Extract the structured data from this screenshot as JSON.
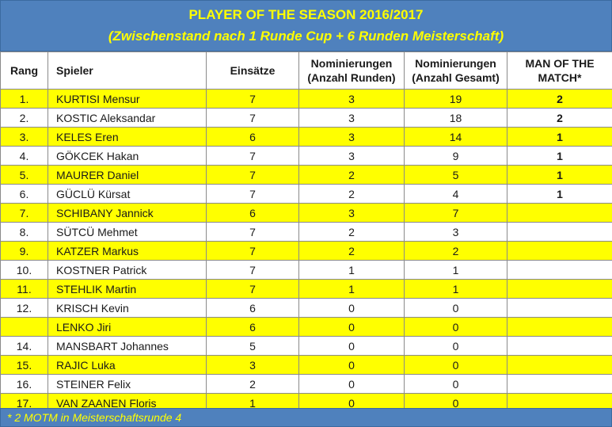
{
  "header": {
    "title": "PLAYER OF THE SEASON 2016/2017",
    "subtitle": "(Zwischenstand nach 1 Runde Cup + 6 Runden Meisterschaft)"
  },
  "columns": {
    "rang": "Rang",
    "spieler": "Spieler",
    "einsaetze": "Einsätze",
    "runden_line1": "Nominierungen",
    "runden_line2": "(Anzahl Runden)",
    "gesamt_line1": "Nominierungen",
    "gesamt_line2": "(Anzahl Gesamt)",
    "motm_line1": "MAN OF THE",
    "motm_line2": "MATCH*"
  },
  "rows": [
    {
      "rang": "1.",
      "spieler": "KURTISI Mensur",
      "einsaetze": "7",
      "runden": "3",
      "gesamt": "19",
      "motm": "2",
      "highlight": true
    },
    {
      "rang": "2.",
      "spieler": "KOSTIC Aleksandar",
      "einsaetze": "7",
      "runden": "3",
      "gesamt": "18",
      "motm": "2",
      "highlight": false
    },
    {
      "rang": "3.",
      "spieler": "KELES Eren",
      "einsaetze": "6",
      "runden": "3",
      "gesamt": "14",
      "motm": "1",
      "highlight": true
    },
    {
      "rang": "4.",
      "spieler": "GÖKCEK Hakan",
      "einsaetze": "7",
      "runden": "3",
      "gesamt": "9",
      "motm": "1",
      "highlight": false
    },
    {
      "rang": "5.",
      "spieler": "MAURER Daniel",
      "einsaetze": "7",
      "runden": "2",
      "gesamt": "5",
      "motm": "1",
      "highlight": true
    },
    {
      "rang": "6.",
      "spieler": "GÜCLÜ Kürsat",
      "einsaetze": "7",
      "runden": "2",
      "gesamt": "4",
      "motm": "1",
      "highlight": false
    },
    {
      "rang": "7.",
      "spieler": "SCHIBANY Jannick",
      "einsaetze": "6",
      "runden": "3",
      "gesamt": "7",
      "motm": "",
      "highlight": true
    },
    {
      "rang": "8.",
      "spieler": "SÜTCÜ Mehmet",
      "einsaetze": "7",
      "runden": "2",
      "gesamt": "3",
      "motm": "",
      "highlight": false
    },
    {
      "rang": "9.",
      "spieler": "KATZER Markus",
      "einsaetze": "7",
      "runden": "2",
      "gesamt": "2",
      "motm": "",
      "highlight": true
    },
    {
      "rang": "10.",
      "spieler": "KOSTNER Patrick",
      "einsaetze": "7",
      "runden": "1",
      "gesamt": "1",
      "motm": "",
      "highlight": false
    },
    {
      "rang": "11.",
      "spieler": "STEHLIK Martin",
      "einsaetze": "7",
      "runden": "1",
      "gesamt": "1",
      "motm": "",
      "highlight": true
    },
    {
      "rang": "12.",
      "spieler": "KRISCH Kevin",
      "einsaetze": "6",
      "runden": "0",
      "gesamt": "0",
      "motm": "",
      "highlight": false
    },
    {
      "rang": "",
      "spieler": "LENKO Jiri",
      "einsaetze": "6",
      "runden": "0",
      "gesamt": "0",
      "motm": "",
      "highlight": true
    },
    {
      "rang": "14.",
      "spieler": "MANSBART Johannes",
      "einsaetze": "5",
      "runden": "0",
      "gesamt": "0",
      "motm": "",
      "highlight": false
    },
    {
      "rang": "15.",
      "spieler": "RAJIC Luka",
      "einsaetze": "3",
      "runden": "0",
      "gesamt": "0",
      "motm": "",
      "highlight": true
    },
    {
      "rang": "16.",
      "spieler": "STEINER Felix",
      "einsaetze": "2",
      "runden": "0",
      "gesamt": "0",
      "motm": "",
      "highlight": false
    },
    {
      "rang": "17.",
      "spieler": "VAN ZAANEN Floris",
      "einsaetze": "1",
      "runden": "0",
      "gesamt": "0",
      "motm": "",
      "highlight": true
    }
  ],
  "footer": {
    "note": "* 2 MOTM in Meisterschaftsrunde 4"
  },
  "colors": {
    "header_bg": "#4f81bd",
    "header_text": "#ffff00",
    "row_highlight": "#ffff00"
  }
}
